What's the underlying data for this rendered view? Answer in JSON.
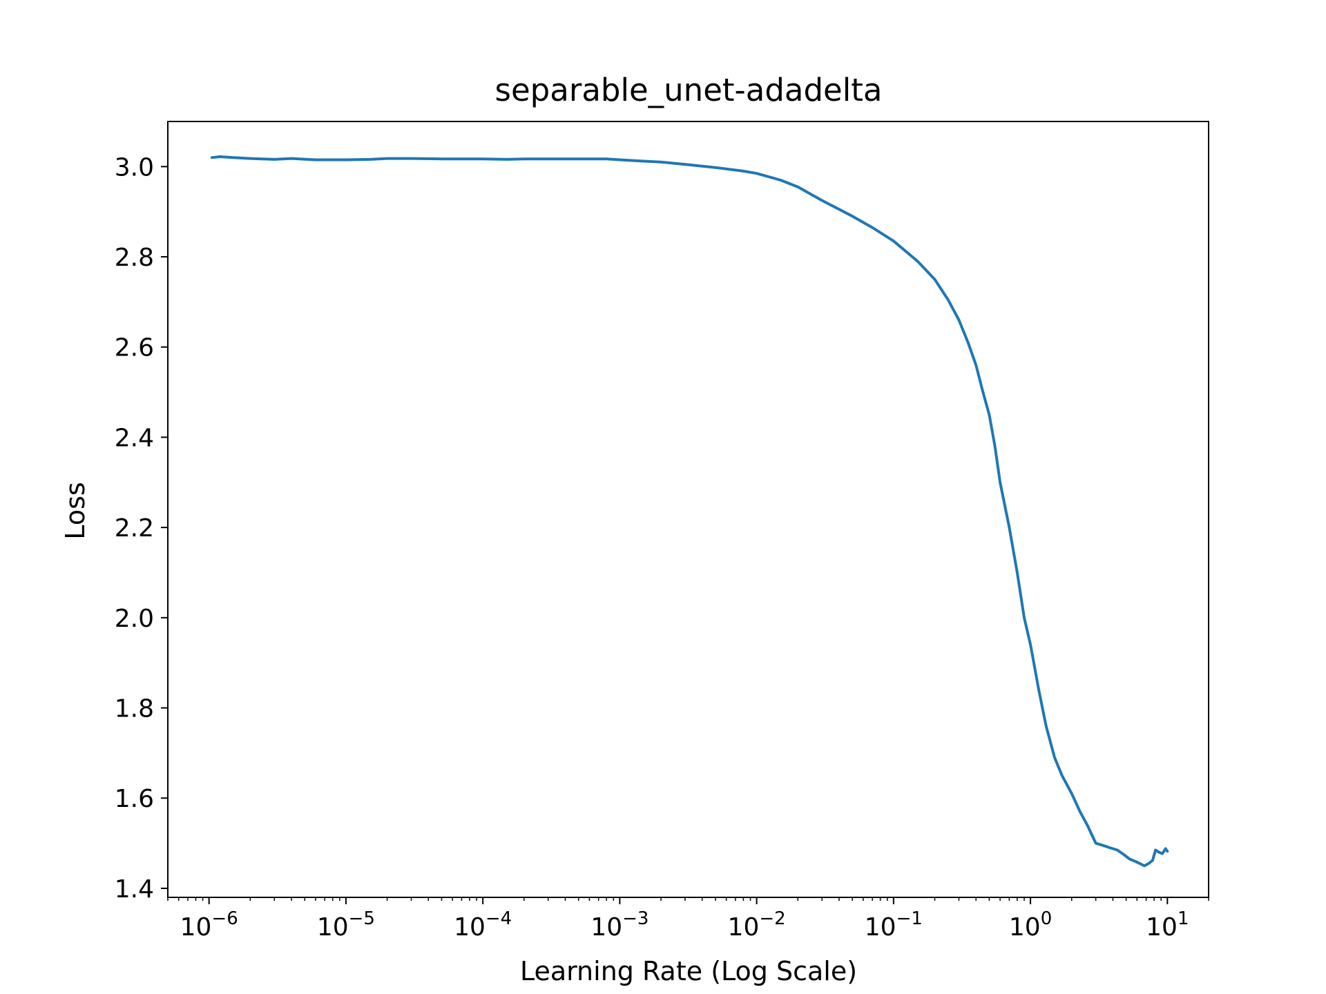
{
  "chart_data": {
    "type": "line",
    "title": "separable_unet-adadelta",
    "xlabel": "Learning Rate (Log Scale)",
    "ylabel": "Loss",
    "x_scale": "log",
    "xlim": [
      5e-07,
      20
    ],
    "ylim": [
      1.38,
      3.1
    ],
    "grid": false,
    "legend": "none",
    "colors": {
      "line": "#1f77b4",
      "axes": "#000000",
      "background": "#ffffff"
    },
    "x_ticks": [
      {
        "value": 1e-06,
        "base": "10",
        "exp": "−6"
      },
      {
        "value": 1e-05,
        "base": "10",
        "exp": "−5"
      },
      {
        "value": 0.0001,
        "base": "10",
        "exp": "−4"
      },
      {
        "value": 0.001,
        "base": "10",
        "exp": "−3"
      },
      {
        "value": 0.01,
        "base": "10",
        "exp": "−2"
      },
      {
        "value": 0.1,
        "base": "10",
        "exp": "−1"
      },
      {
        "value": 1,
        "base": "10",
        "exp": "0"
      },
      {
        "value": 10,
        "base": "10",
        "exp": "1"
      }
    ],
    "y_ticks": [
      {
        "value": 1.4,
        "label": "1.4"
      },
      {
        "value": 1.6,
        "label": "1.6"
      },
      {
        "value": 1.8,
        "label": "1.8"
      },
      {
        "value": 2.0,
        "label": "2.0"
      },
      {
        "value": 2.2,
        "label": "2.2"
      },
      {
        "value": 2.4,
        "label": "2.4"
      },
      {
        "value": 2.6,
        "label": "2.6"
      },
      {
        "value": 2.8,
        "label": "2.8"
      },
      {
        "value": 3.0,
        "label": "3.0"
      }
    ],
    "series": [
      {
        "x": [
          1.05e-06,
          1.2e-06,
          1.5e-06,
          2e-06,
          3e-06,
          4e-06,
          6e-06,
          1e-05,
          1.5e-05,
          2e-05,
          3e-05,
          5e-05,
          0.0001,
          0.00015,
          0.0002,
          0.0003,
          0.0005,
          0.0008,
          0.001,
          0.0015,
          0.002,
          0.003,
          0.005,
          0.008,
          0.01,
          0.015,
          0.02,
          0.03,
          0.05,
          0.07,
          0.1,
          0.15,
          0.2,
          0.25,
          0.3,
          0.35,
          0.4,
          0.45,
          0.5,
          0.55,
          0.6,
          0.7,
          0.8,
          0.9,
          1.0,
          1.15,
          1.3,
          1.5,
          1.7,
          2.0,
          2.3,
          2.6,
          3.0,
          3.4,
          3.8,
          4.3,
          4.8,
          5.3,
          5.8,
          6.3,
          6.8,
          7.3,
          7.8,
          8.2,
          8.7,
          9.2,
          9.7,
          10.0
        ],
        "y": [
          3.02,
          3.022,
          3.02,
          3.018,
          3.016,
          3.018,
          3.015,
          3.015,
          3.016,
          3.018,
          3.018,
          3.017,
          3.017,
          3.016,
          3.017,
          3.017,
          3.017,
          3.017,
          3.015,
          3.012,
          3.01,
          3.005,
          2.998,
          2.99,
          2.985,
          2.97,
          2.955,
          2.925,
          2.89,
          2.865,
          2.835,
          2.79,
          2.75,
          2.705,
          2.66,
          2.61,
          2.56,
          2.5,
          2.45,
          2.38,
          2.3,
          2.2,
          2.1,
          2.0,
          1.94,
          1.84,
          1.76,
          1.69,
          1.65,
          1.61,
          1.57,
          1.54,
          1.5,
          1.495,
          1.49,
          1.485,
          1.475,
          1.465,
          1.46,
          1.455,
          1.45,
          1.455,
          1.462,
          1.485,
          1.48,
          1.477,
          1.488,
          1.482
        ]
      }
    ]
  }
}
